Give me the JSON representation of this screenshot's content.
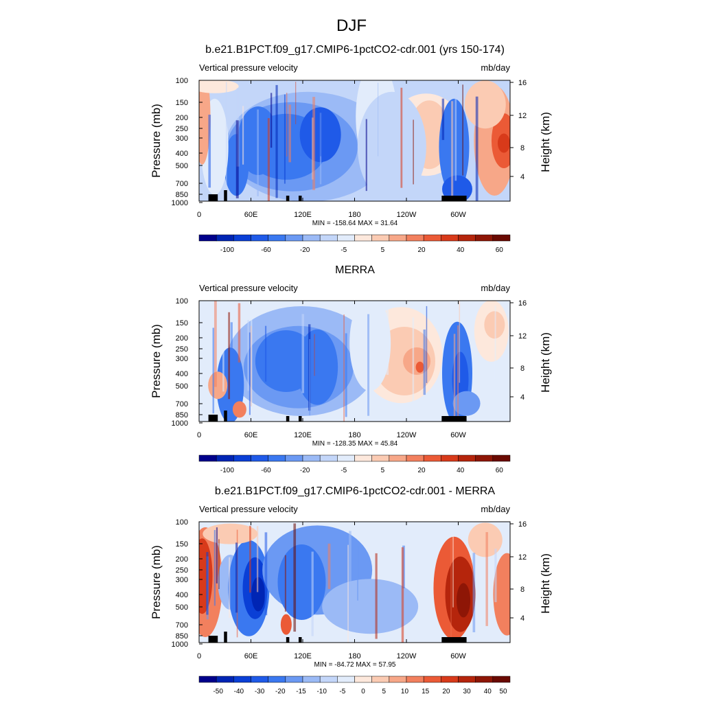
{
  "page_title": "DJF",
  "chart_data": [
    {
      "type": "heatmap",
      "title": "b.e21.B1PCT.f09_g17.CMIP6-1pctCO2-cdr.001 (yrs 150-174)",
      "subtitle_left": "Vertical pressure velocity",
      "subtitle_right": "mb/day",
      "ylabel": "Pressure (mb)",
      "ylabel_right": "Height (km)",
      "x_ticks": [
        "0",
        "60E",
        "120E",
        "180",
        "120W",
        "60W"
      ],
      "y_ticks": [
        "100",
        "150",
        "200",
        "250",
        "300",
        "400",
        "500",
        "700",
        "850",
        "1000"
      ],
      "y_right_ticks": [
        "16",
        "12",
        "8",
        "4"
      ],
      "stats": "MIN = -158.64  MAX =  31.64",
      "min": -158.64,
      "max": 31.64,
      "colorbar_labels": [
        "-100",
        "-60",
        "-20",
        "-5",
        "5",
        "20",
        "40",
        "60"
      ],
      "colorbar_colors": [
        "#00008b",
        "#0025b4",
        "#0a3fd6",
        "#1f5ae8",
        "#3a78f0",
        "#6b99f3",
        "#9bbaf6",
        "#c3d6f9",
        "#e2ecfb",
        "#fde8dc",
        "#fbcbb3",
        "#f7a788",
        "#f2805e",
        "#eb5a36",
        "#d83a1a",
        "#b5250c",
        "#8e1606",
        "#6a0a02"
      ]
    },
    {
      "type": "heatmap",
      "title": "MERRA",
      "subtitle_left": "Vertical pressure velocity",
      "subtitle_right": "mb/day",
      "ylabel": "Pressure (mb)",
      "ylabel_right": "Height (km)",
      "x_ticks": [
        "0",
        "60E",
        "120E",
        "180",
        "120W",
        "60W"
      ],
      "y_ticks": [
        "100",
        "150",
        "200",
        "250",
        "300",
        "400",
        "500",
        "700",
        "850",
        "1000"
      ],
      "y_right_ticks": [
        "16",
        "12",
        "8",
        "4"
      ],
      "stats": "MIN = -128.35  MAX =  45.84",
      "min": -128.35,
      "max": 45.84,
      "colorbar_labels": [
        "-100",
        "-60",
        "-20",
        "-5",
        "5",
        "20",
        "40",
        "60"
      ],
      "colorbar_colors": [
        "#00008b",
        "#0025b4",
        "#0a3fd6",
        "#1f5ae8",
        "#3a78f0",
        "#6b99f3",
        "#9bbaf6",
        "#c3d6f9",
        "#e2ecfb",
        "#fde8dc",
        "#fbcbb3",
        "#f7a788",
        "#f2805e",
        "#eb5a36",
        "#d83a1a",
        "#b5250c",
        "#8e1606",
        "#6a0a02"
      ]
    },
    {
      "type": "heatmap",
      "title": "b.e21.B1PCT.f09_g17.CMIP6-1pctCO2-cdr.001 - MERRA",
      "subtitle_left": "Vertical pressure velocity",
      "subtitle_right": "mb/day",
      "ylabel": "Pressure (mb)",
      "ylabel_right": "Height (km)",
      "x_ticks": [
        "0",
        "60E",
        "120E",
        "180",
        "120W",
        "60W"
      ],
      "y_ticks": [
        "100",
        "150",
        "200",
        "250",
        "300",
        "400",
        "500",
        "700",
        "850",
        "1000"
      ],
      "y_right_ticks": [
        "16",
        "12",
        "8",
        "4"
      ],
      "stats": "MIN = -84.72  MAX =  57.95",
      "min": -84.72,
      "max": 57.95,
      "colorbar_labels": [
        "-50",
        "-40",
        "-30",
        "-20",
        "-15",
        "-10",
        "-5",
        "0",
        "5",
        "10",
        "15",
        "20",
        "30",
        "40",
        "50"
      ],
      "colorbar_colors": [
        "#00008b",
        "#0025b4",
        "#0a3fd6",
        "#1f5ae8",
        "#3a78f0",
        "#6b99f3",
        "#9bbaf6",
        "#c3d6f9",
        "#e2ecfb",
        "#fde8dc",
        "#fbcbb3",
        "#f7a788",
        "#f2805e",
        "#eb5a36",
        "#d83a1a",
        "#b5250c",
        "#8e1606",
        "#6a0a02"
      ]
    }
  ]
}
